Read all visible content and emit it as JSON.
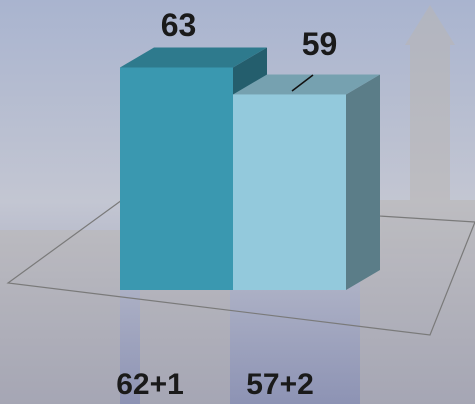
{
  "chart_data": {
    "type": "bar3d",
    "categories": [
      "62+1",
      "57+2"
    ],
    "values": [
      63,
      59
    ],
    "colors": [
      "#3a98b0",
      "#93c9dc"
    ],
    "ylim": [
      30,
      65
    ]
  }
}
